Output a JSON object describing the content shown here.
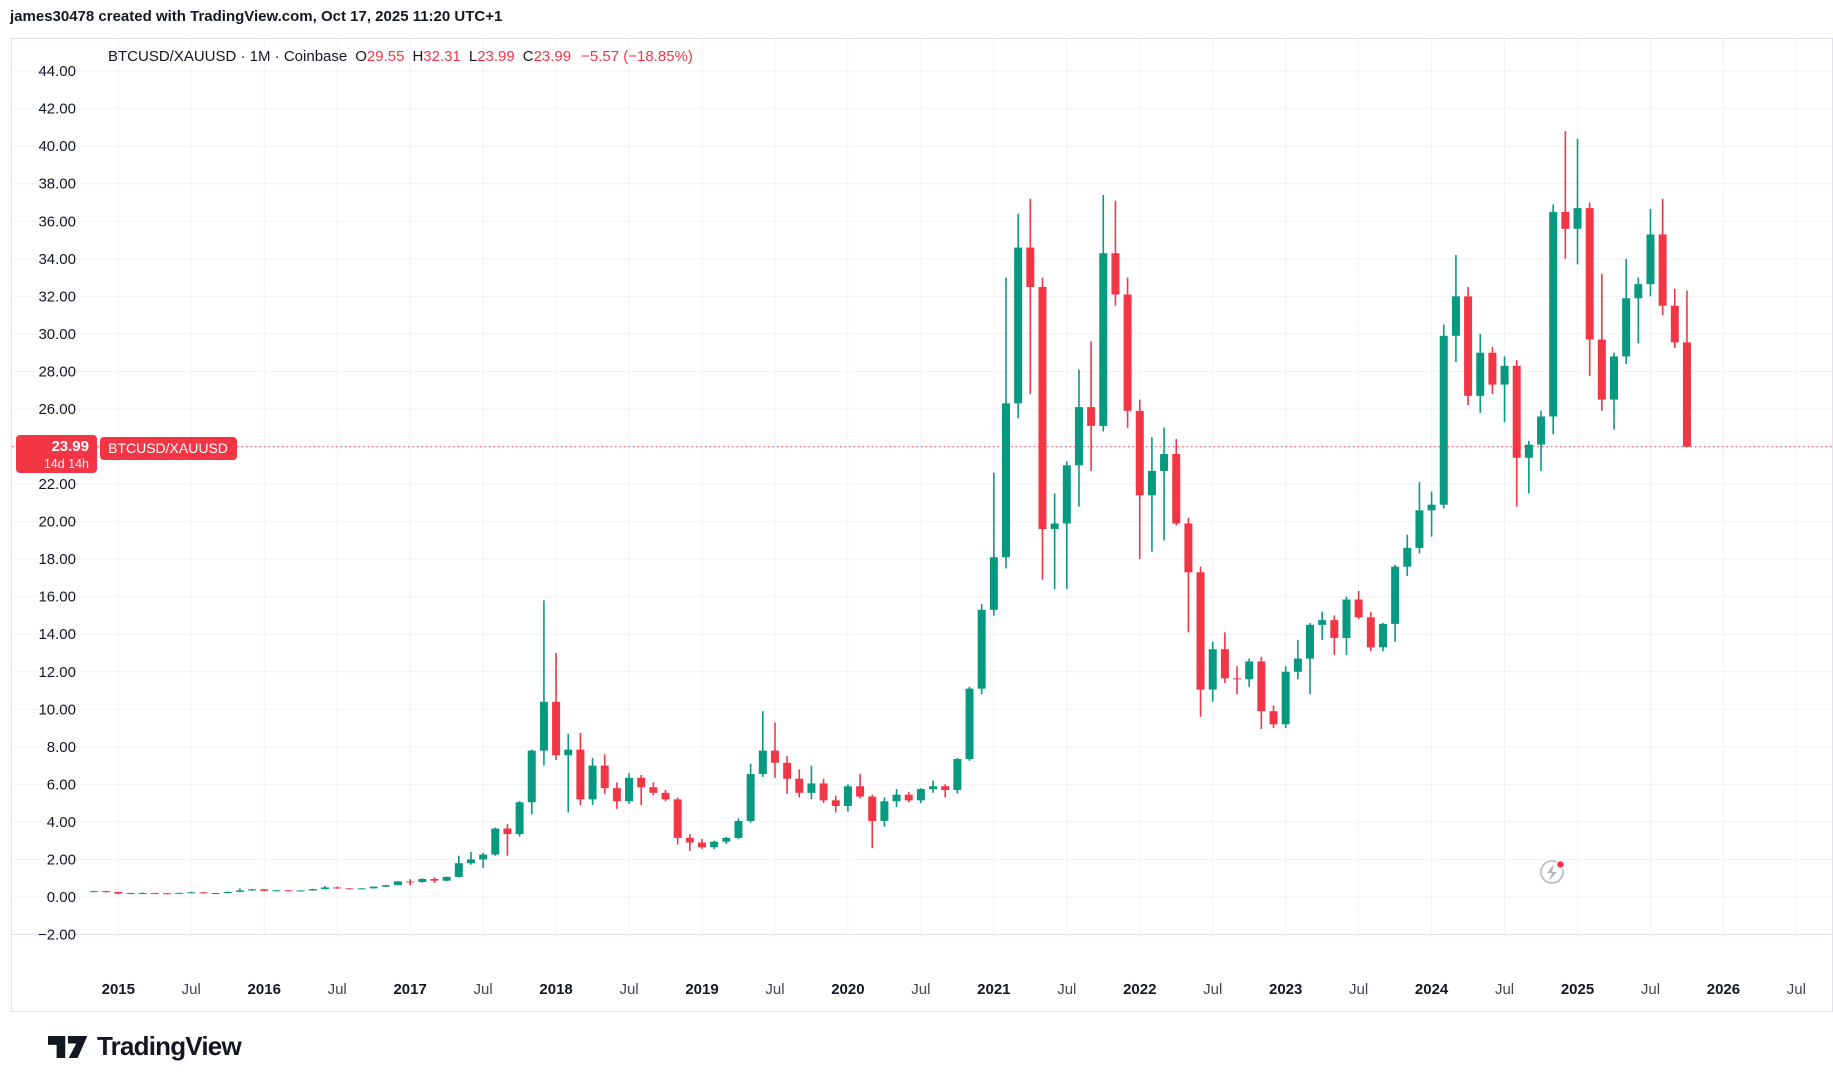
{
  "attribution": "james30478 created with TradingView.com, Oct 17, 2025 11:20 UTC+1",
  "legend": {
    "symbol_title": "BTCUSD/XAUUSD · 1M · Coinbase",
    "o_label": "O",
    "o_value": "29.55",
    "h_label": "H",
    "h_value": "32.31",
    "l_label": "L",
    "l_value": "23.99",
    "c_label": "C",
    "c_value": "23.99",
    "change": "−5.57 (−18.85%)"
  },
  "price_label": {
    "price": "23.99",
    "countdown": "14d 14h",
    "symbol_badge": "BTCUSD/XAUUSD"
  },
  "footer": {
    "brand": "TradingView"
  },
  "colors": {
    "up": "#089981",
    "down": "#f23645",
    "grid": "#f0f3fa",
    "axis_line": "#e0e3eb",
    "text": "#131722",
    "muted": "#434651",
    "badge": "#f23645",
    "icon_gray": "#b2b5be"
  },
  "chart_data": {
    "type": "candlestick",
    "title": "BTCUSD/XAUUSD",
    "interval": "1M",
    "exchange": "Coinbase",
    "ylim": [
      -2,
      44
    ],
    "grid": true,
    "current_price": 23.99,
    "current_price_line": {
      "value": 23.99,
      "style": "dotted",
      "color": "#f23645"
    },
    "y_ticks": [
      {
        "v": 44,
        "t": "44.00"
      },
      {
        "v": 42,
        "t": "42.00"
      },
      {
        "v": 40,
        "t": "40.00"
      },
      {
        "v": 38,
        "t": "38.00"
      },
      {
        "v": 36,
        "t": "36.00"
      },
      {
        "v": 34,
        "t": "34.00"
      },
      {
        "v": 32,
        "t": "32.00"
      },
      {
        "v": 30,
        "t": "30.00"
      },
      {
        "v": 28,
        "t": "28.00"
      },
      {
        "v": 26,
        "t": "26.00"
      },
      {
        "v": 22,
        "t": "22.00"
      },
      {
        "v": 20,
        "t": "20.00"
      },
      {
        "v": 18,
        "t": "18.00"
      },
      {
        "v": 16,
        "t": "16.00"
      },
      {
        "v": 14,
        "t": "14.00"
      },
      {
        "v": 12,
        "t": "12.00"
      },
      {
        "v": 10,
        "t": "10.00"
      },
      {
        "v": 8,
        "t": "8.00"
      },
      {
        "v": 6,
        "t": "6.00"
      },
      {
        "v": 4,
        "t": "4.00"
      },
      {
        "v": 2,
        "t": "2.00"
      },
      {
        "v": 0,
        "t": "0.00"
      },
      {
        "v": -2,
        "t": "−2.00"
      }
    ],
    "x_ticks": [
      {
        "m": 2,
        "t": "2015",
        "bold": true
      },
      {
        "m": 8,
        "t": "Jul",
        "bold": false
      },
      {
        "m": 14,
        "t": "2016",
        "bold": true
      },
      {
        "m": 20,
        "t": "Jul",
        "bold": false
      },
      {
        "m": 26,
        "t": "2017",
        "bold": true
      },
      {
        "m": 32,
        "t": "Jul",
        "bold": false
      },
      {
        "m": 38,
        "t": "2018",
        "bold": true
      },
      {
        "m": 44,
        "t": "Jul",
        "bold": false
      },
      {
        "m": 50,
        "t": "2019",
        "bold": true
      },
      {
        "m": 56,
        "t": "Jul",
        "bold": false
      },
      {
        "m": 62,
        "t": "2020",
        "bold": true
      },
      {
        "m": 68,
        "t": "Jul",
        "bold": false
      },
      {
        "m": 74,
        "t": "2021",
        "bold": true
      },
      {
        "m": 80,
        "t": "Jul",
        "bold": false
      },
      {
        "m": 86,
        "t": "2022",
        "bold": true
      },
      {
        "m": 92,
        "t": "Jul",
        "bold": false
      },
      {
        "m": 98,
        "t": "2023",
        "bold": true
      },
      {
        "m": 104,
        "t": "Jul",
        "bold": false
      },
      {
        "m": 110,
        "t": "2024",
        "bold": true
      },
      {
        "m": 116,
        "t": "Jul",
        "bold": false
      },
      {
        "m": 122,
        "t": "2025",
        "bold": true
      },
      {
        "m": 128,
        "t": "Jul",
        "bold": false
      },
      {
        "m": 134,
        "t": "2026",
        "bold": true
      },
      {
        "m": 140,
        "t": "Jul",
        "bold": false
      }
    ],
    "candles": [
      [
        "2014-11",
        0.29,
        0.33,
        0.26,
        0.31
      ],
      [
        "2014-12",
        0.31,
        0.33,
        0.24,
        0.27
      ],
      [
        "2015-01",
        0.27,
        0.28,
        0.15,
        0.18
      ],
      [
        "2015-02",
        0.18,
        0.22,
        0.17,
        0.21
      ],
      [
        "2015-03",
        0.21,
        0.25,
        0.19,
        0.21
      ],
      [
        "2015-04",
        0.21,
        0.22,
        0.18,
        0.2
      ],
      [
        "2015-05",
        0.2,
        0.21,
        0.18,
        0.19
      ],
      [
        "2015-06",
        0.19,
        0.23,
        0.18,
        0.22
      ],
      [
        "2015-07",
        0.22,
        0.28,
        0.21,
        0.25
      ],
      [
        "2015-08",
        0.25,
        0.25,
        0.17,
        0.2
      ],
      [
        "2015-09",
        0.2,
        0.22,
        0.19,
        0.21
      ],
      [
        "2015-10",
        0.21,
        0.29,
        0.2,
        0.27
      ],
      [
        "2015-11",
        0.27,
        0.46,
        0.26,
        0.35
      ],
      [
        "2015-12",
        0.35,
        0.43,
        0.33,
        0.41
      ],
      [
        "2016-01",
        0.41,
        0.41,
        0.31,
        0.33
      ],
      [
        "2016-02",
        0.33,
        0.37,
        0.3,
        0.36
      ],
      [
        "2016-03",
        0.36,
        0.36,
        0.31,
        0.33
      ],
      [
        "2016-04",
        0.33,
        0.36,
        0.32,
        0.35
      ],
      [
        "2016-05",
        0.35,
        0.44,
        0.34,
        0.42
      ],
      [
        "2016-06",
        0.42,
        0.58,
        0.41,
        0.51
      ],
      [
        "2016-07",
        0.51,
        0.56,
        0.43,
        0.46
      ],
      [
        "2016-08",
        0.46,
        0.47,
        0.41,
        0.44
      ],
      [
        "2016-09",
        0.44,
        0.47,
        0.42,
        0.46
      ],
      [
        "2016-10",
        0.46,
        0.56,
        0.45,
        0.55
      ],
      [
        "2016-11",
        0.55,
        0.64,
        0.53,
        0.63
      ],
      [
        "2016-12",
        0.63,
        0.85,
        0.62,
        0.83
      ],
      [
        "2017-01",
        0.83,
        0.95,
        0.62,
        0.8
      ],
      [
        "2017-02",
        0.8,
        1.0,
        0.76,
        0.96
      ],
      [
        "2017-03",
        0.96,
        1.05,
        0.75,
        0.87
      ],
      [
        "2017-04",
        0.87,
        1.08,
        0.84,
        1.07
      ],
      [
        "2017-05",
        1.07,
        2.2,
        1.04,
        1.8
      ],
      [
        "2017-06",
        1.8,
        2.4,
        1.72,
        2.0
      ],
      [
        "2017-07",
        2.0,
        2.35,
        1.55,
        2.26
      ],
      [
        "2017-08",
        2.26,
        3.7,
        2.2,
        3.65
      ],
      [
        "2017-09",
        3.65,
        3.9,
        2.2,
        3.35
      ],
      [
        "2017-10",
        3.35,
        5.1,
        3.22,
        5.05
      ],
      [
        "2017-11",
        5.05,
        7.85,
        4.4,
        7.8
      ],
      [
        "2017-12",
        7.8,
        15.8,
        7.0,
        10.4
      ],
      [
        "2018-01",
        10.4,
        13.0,
        7.3,
        7.55
      ],
      [
        "2018-02",
        7.55,
        8.7,
        4.5,
        7.85
      ],
      [
        "2018-03",
        7.85,
        8.75,
        4.9,
        5.2
      ],
      [
        "2018-04",
        5.2,
        7.4,
        4.9,
        7.0
      ],
      [
        "2018-05",
        7.0,
        7.6,
        5.5,
        5.8
      ],
      [
        "2018-06",
        5.8,
        6.1,
        4.7,
        5.1
      ],
      [
        "2018-07",
        5.1,
        6.6,
        4.95,
        6.35
      ],
      [
        "2018-08",
        6.35,
        6.5,
        4.9,
        5.85
      ],
      [
        "2018-09",
        5.85,
        6.1,
        5.4,
        5.55
      ],
      [
        "2018-10",
        5.55,
        5.7,
        5.1,
        5.2
      ],
      [
        "2018-11",
        5.2,
        5.3,
        2.8,
        3.15
      ],
      [
        "2018-12",
        3.15,
        3.35,
        2.45,
        2.9
      ],
      [
        "2019-01",
        2.9,
        3.1,
        2.55,
        2.65
      ],
      [
        "2019-02",
        2.65,
        3.0,
        2.55,
        2.95
      ],
      [
        "2019-03",
        2.95,
        3.2,
        2.82,
        3.15
      ],
      [
        "2019-04",
        3.15,
        4.2,
        3.08,
        4.05
      ],
      [
        "2019-05",
        4.05,
        7.1,
        3.95,
        6.55
      ],
      [
        "2019-06",
        6.55,
        9.9,
        6.4,
        7.8
      ],
      [
        "2019-07",
        7.8,
        9.3,
        6.35,
        7.15
      ],
      [
        "2019-08",
        7.15,
        7.5,
        5.5,
        6.3
      ],
      [
        "2019-09",
        6.3,
        6.8,
        5.3,
        5.55
      ],
      [
        "2019-10",
        5.55,
        7.0,
        5.2,
        6.05
      ],
      [
        "2019-11",
        6.05,
        6.3,
        5.0,
        5.15
      ],
      [
        "2019-12",
        5.15,
        5.4,
        4.5,
        4.85
      ],
      [
        "2020-01",
        4.85,
        6.0,
        4.55,
        5.9
      ],
      [
        "2020-02",
        5.9,
        6.55,
        5.25,
        5.35
      ],
      [
        "2020-03",
        5.35,
        5.45,
        2.6,
        4.05
      ],
      [
        "2020-04",
        4.05,
        5.3,
        3.75,
        5.1
      ],
      [
        "2020-05",
        5.1,
        5.75,
        4.8,
        5.45
      ],
      [
        "2020-06",
        5.45,
        5.6,
        5.05,
        5.15
      ],
      [
        "2020-07",
        5.15,
        5.8,
        5.0,
        5.75
      ],
      [
        "2020-08",
        5.75,
        6.2,
        5.55,
        5.9
      ],
      [
        "2020-09",
        5.9,
        6.0,
        5.3,
        5.7
      ],
      [
        "2020-10",
        5.7,
        7.4,
        5.5,
        7.35
      ],
      [
        "2020-11",
        7.35,
        11.2,
        7.25,
        11.1
      ],
      [
        "2020-12",
        11.1,
        15.6,
        10.8,
        15.3
      ],
      [
        "2021-01",
        15.3,
        22.6,
        15.0,
        18.1
      ],
      [
        "2021-02",
        18.1,
        33.0,
        17.5,
        26.3
      ],
      [
        "2021-03",
        26.3,
        36.4,
        25.5,
        34.6
      ],
      [
        "2021-04",
        34.6,
        37.2,
        26.8,
        32.5
      ],
      [
        "2021-05",
        32.5,
        33.0,
        16.9,
        19.6
      ],
      [
        "2021-06",
        19.6,
        21.5,
        16.4,
        19.9
      ],
      [
        "2021-07",
        19.9,
        23.2,
        16.4,
        23.0
      ],
      [
        "2021-08",
        23.0,
        28.1,
        20.8,
        26.1
      ],
      [
        "2021-09",
        26.1,
        29.6,
        22.7,
        25.1
      ],
      [
        "2021-10",
        25.1,
        37.4,
        24.8,
        34.3
      ],
      [
        "2021-11",
        34.3,
        37.1,
        31.5,
        32.1
      ],
      [
        "2021-12",
        32.1,
        33.0,
        25.0,
        25.9
      ],
      [
        "2022-01",
        25.9,
        26.5,
        18.0,
        21.4
      ],
      [
        "2022-02",
        21.4,
        24.5,
        18.4,
        22.7
      ],
      [
        "2022-03",
        22.7,
        25.0,
        19.0,
        23.6
      ],
      [
        "2022-04",
        23.6,
        24.4,
        19.8,
        19.9
      ],
      [
        "2022-05",
        19.9,
        20.2,
        14.1,
        17.3
      ],
      [
        "2022-06",
        17.3,
        17.6,
        9.6,
        11.05
      ],
      [
        "2022-07",
        11.05,
        13.6,
        10.4,
        13.2
      ],
      [
        "2022-08",
        13.2,
        14.1,
        11.4,
        11.65
      ],
      [
        "2022-09",
        11.65,
        12.3,
        10.8,
        11.6
      ],
      [
        "2022-10",
        11.6,
        12.7,
        11.2,
        12.55
      ],
      [
        "2022-11",
        12.55,
        12.8,
        8.95,
        9.9
      ],
      [
        "2022-12",
        9.9,
        10.2,
        9.0,
        9.2
      ],
      [
        "2023-01",
        9.2,
        12.3,
        9.0,
        12.0
      ],
      [
        "2023-02",
        12.0,
        13.7,
        11.6,
        12.7
      ],
      [
        "2023-03",
        12.7,
        14.6,
        10.8,
        14.5
      ],
      [
        "2023-04",
        14.5,
        15.2,
        13.7,
        14.75
      ],
      [
        "2023-05",
        14.75,
        15.0,
        12.9,
        13.8
      ],
      [
        "2023-06",
        13.8,
        16.0,
        12.9,
        15.85
      ],
      [
        "2023-07",
        15.85,
        16.3,
        14.8,
        14.9
      ],
      [
        "2023-08",
        14.9,
        15.2,
        13.1,
        13.3
      ],
      [
        "2023-09",
        13.3,
        14.6,
        13.1,
        14.55
      ],
      [
        "2023-10",
        14.55,
        17.7,
        13.6,
        17.6
      ],
      [
        "2023-11",
        17.6,
        19.3,
        17.1,
        18.6
      ],
      [
        "2023-12",
        18.6,
        22.1,
        18.3,
        20.6
      ],
      [
        "2024-01",
        20.6,
        21.6,
        19.2,
        20.9
      ],
      [
        "2024-02",
        20.9,
        30.5,
        20.7,
        29.9
      ],
      [
        "2024-03",
        29.9,
        34.2,
        28.5,
        32.0
      ],
      [
        "2024-04",
        32.0,
        32.5,
        26.2,
        26.7
      ],
      [
        "2024-05",
        26.7,
        30.0,
        25.8,
        29.0
      ],
      [
        "2024-06",
        29.0,
        29.3,
        26.8,
        27.3
      ],
      [
        "2024-07",
        27.3,
        28.8,
        25.3,
        28.3
      ],
      [
        "2024-08",
        28.3,
        28.6,
        20.8,
        23.4
      ],
      [
        "2024-09",
        23.4,
        24.3,
        21.5,
        24.1
      ],
      [
        "2024-10",
        24.1,
        25.9,
        22.7,
        25.6
      ],
      [
        "2024-11",
        25.6,
        36.9,
        24.65,
        36.5
      ],
      [
        "2024-12",
        36.5,
        40.8,
        34.0,
        35.6
      ],
      [
        "2025-01",
        35.6,
        40.4,
        33.7,
        36.7
      ],
      [
        "2025-02",
        36.7,
        37.0,
        27.75,
        29.7
      ],
      [
        "2025-03",
        29.7,
        33.2,
        25.9,
        26.5
      ],
      [
        "2025-04",
        26.5,
        29.0,
        24.9,
        28.8
      ],
      [
        "2025-05",
        28.8,
        34.0,
        28.4,
        31.9
      ],
      [
        "2025-06",
        31.9,
        33.0,
        29.5,
        32.65
      ],
      [
        "2025-07",
        32.65,
        36.65,
        32.0,
        35.3
      ],
      [
        "2025-08",
        35.3,
        37.2,
        31.0,
        31.5
      ],
      [
        "2025-09",
        31.5,
        32.4,
        29.25,
        29.55
      ],
      [
        "2025-10",
        29.55,
        32.31,
        23.99,
        23.99
      ]
    ]
  }
}
